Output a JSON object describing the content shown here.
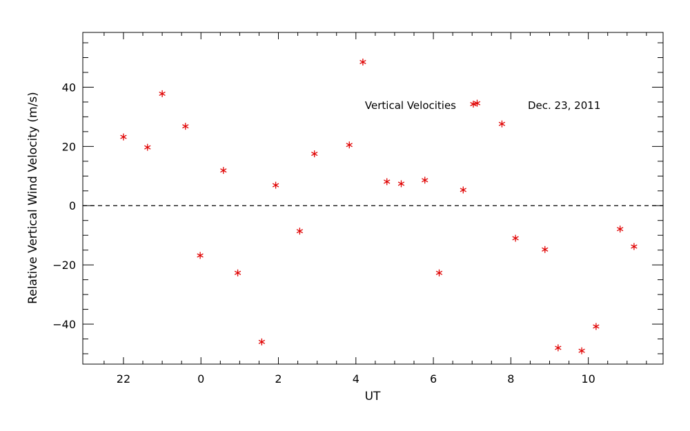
{
  "chart_data": {
    "type": "scatter",
    "xlabel": "UT",
    "ylabel": "Relative Vertical Wind Velocity (m/s)",
    "x_ticks": [
      {
        "value": 22,
        "label": "22"
      },
      {
        "value": 24,
        "label": "0"
      },
      {
        "value": 26,
        "label": "2"
      },
      {
        "value": 28,
        "label": "4"
      },
      {
        "value": 30,
        "label": "6"
      },
      {
        "value": 32,
        "label": "8"
      },
      {
        "value": 34,
        "label": "10"
      }
    ],
    "y_ticks": [
      {
        "value": -40,
        "label": "−40"
      },
      {
        "value": -20,
        "label": "−20"
      },
      {
        "value": 0,
        "label": "0"
      },
      {
        "value": 20,
        "label": "20"
      },
      {
        "value": 40,
        "label": "40"
      }
    ],
    "xlim": [
      20.95,
      35.93
    ],
    "ylim": [
      -53.5,
      58.5
    ],
    "zero_line": true,
    "legend": {
      "label": "Vertical Velocities",
      "date": "Dec. 23, 2011",
      "placement": "top-right"
    },
    "marker_color": "#e00000",
    "series": [
      {
        "name": "Vertical Velocities",
        "points": [
          [
            22.0,
            23.2
          ],
          [
            22.62,
            19.7
          ],
          [
            23.0,
            37.8
          ],
          [
            23.6,
            26.8
          ],
          [
            23.98,
            -16.8
          ],
          [
            24.58,
            11.9
          ],
          [
            24.95,
            -22.7
          ],
          [
            25.57,
            -46.0
          ],
          [
            25.93,
            6.9
          ],
          [
            26.55,
            -8.6
          ],
          [
            26.93,
            17.5
          ],
          [
            27.83,
            20.5
          ],
          [
            28.18,
            48.5
          ],
          [
            28.8,
            8.1
          ],
          [
            29.17,
            7.4
          ],
          [
            29.78,
            8.6
          ],
          [
            30.15,
            -22.7
          ],
          [
            30.77,
            5.3
          ],
          [
            31.13,
            34.6
          ],
          [
            31.77,
            27.6
          ],
          [
            32.12,
            -11.0
          ],
          [
            32.88,
            -14.8
          ],
          [
            33.22,
            -48.0
          ],
          [
            33.83,
            -49.0
          ],
          [
            34.2,
            -40.8
          ],
          [
            34.82,
            -7.9
          ],
          [
            35.18,
            -13.8
          ]
        ]
      }
    ]
  }
}
